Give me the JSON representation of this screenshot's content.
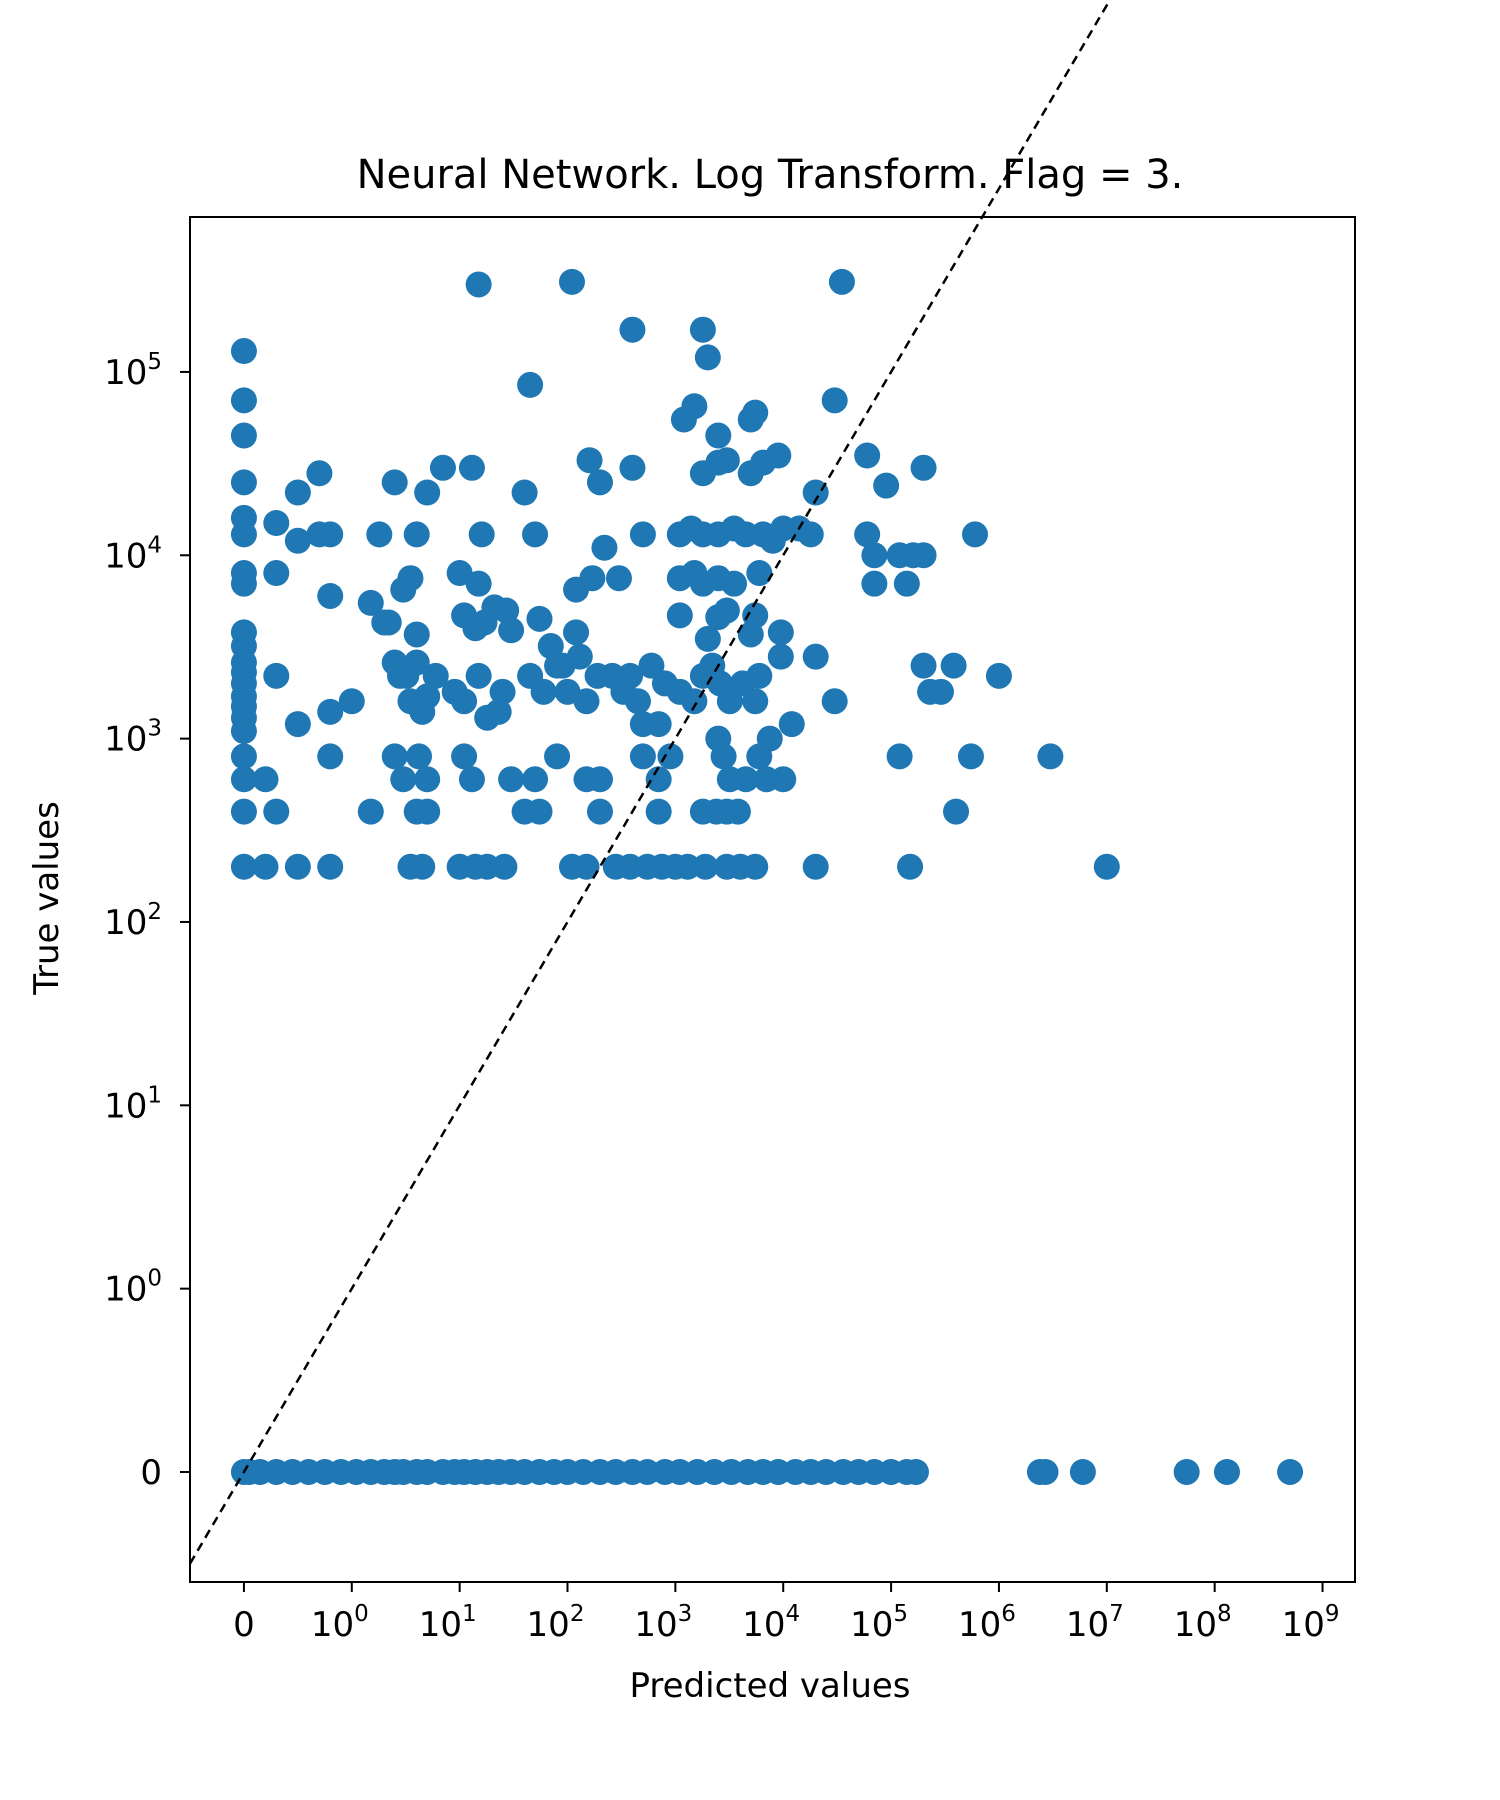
{
  "chart_data": {
    "type": "scatter",
    "title": "Neural Network. Log Transform. Flag = 3.",
    "xlabel": "Predicted values",
    "ylabel": "True values",
    "xscale": "symlog",
    "yscale": "symlog",
    "xlim": [
      -0.5,
      2000000000
    ],
    "ylim": [
      -0.6,
      700000
    ],
    "grid": false,
    "legend": "none",
    "marker_color": "#1f77b4",
    "reference_line": {
      "style": "dashed",
      "color": "#000000",
      "from": [
        -0.5,
        -0.5
      ],
      "to": [
        2000000000,
        2000000000
      ]
    },
    "xticks": [
      {
        "value": 0,
        "base": "0",
        "exp": ""
      },
      {
        "value": 1,
        "base": "10",
        "exp": "0"
      },
      {
        "value": 10,
        "base": "10",
        "exp": "1"
      },
      {
        "value": 100,
        "base": "10",
        "exp": "2"
      },
      {
        "value": 1000,
        "base": "10",
        "exp": "3"
      },
      {
        "value": 10000,
        "base": "10",
        "exp": "4"
      },
      {
        "value": 100000,
        "base": "10",
        "exp": "5"
      },
      {
        "value": 1000000,
        "base": "10",
        "exp": "6"
      },
      {
        "value": 10000000,
        "base": "10",
        "exp": "7"
      },
      {
        "value": 100000000,
        "base": "10",
        "exp": "8"
      },
      {
        "value": 1000000000,
        "base": "10",
        "exp": "9"
      }
    ],
    "yticks": [
      {
        "value": 0,
        "base": "0",
        "exp": ""
      },
      {
        "value": 1,
        "base": "10",
        "exp": "0"
      },
      {
        "value": 10,
        "base": "10",
        "exp": "1"
      },
      {
        "value": 100,
        "base": "10",
        "exp": "2"
      },
      {
        "value": 1000,
        "base": "10",
        "exp": "3"
      },
      {
        "value": 10000,
        "base": "10",
        "exp": "4"
      },
      {
        "value": 100000,
        "base": "10",
        "exp": "5"
      }
    ],
    "points": [
      [
        15,
        300000
      ],
      [
        110,
        310000
      ],
      [
        35000,
        310000
      ],
      [
        0,
        130000
      ],
      [
        400,
        170000
      ],
      [
        1800,
        170000
      ],
      [
        2000,
        120000
      ],
      [
        45,
        85000
      ],
      [
        0,
        70000
      ],
      [
        0,
        45000
      ],
      [
        1500,
        65000
      ],
      [
        1200,
        55000
      ],
      [
        2500,
        45000
      ],
      [
        5000,
        55000
      ],
      [
        5500,
        60000
      ],
      [
        30000,
        70000
      ],
      [
        0,
        25000
      ],
      [
        0.7,
        28000
      ],
      [
        0.5,
        22000
      ],
      [
        2.5,
        25000
      ],
      [
        7,
        30000
      ],
      [
        13,
        30000
      ],
      [
        5,
        22000
      ],
      [
        40,
        22000
      ],
      [
        160,
        33000
      ],
      [
        200,
        25000
      ],
      [
        400,
        30000
      ],
      [
        1800,
        28000
      ],
      [
        2500,
        32000
      ],
      [
        3000,
        33000
      ],
      [
        5000,
        28000
      ],
      [
        6500,
        32000
      ],
      [
        9000,
        35000
      ],
      [
        20000,
        22000
      ],
      [
        60000,
        35000
      ],
      [
        90000,
        24000
      ],
      [
        200000,
        30000
      ],
      [
        0,
        16000
      ],
      [
        0,
        13000
      ],
      [
        0.3,
        15000
      ],
      [
        0.5,
        12000
      ],
      [
        0.7,
        13000
      ],
      [
        0.8,
        13000
      ],
      [
        1.8,
        13000
      ],
      [
        4,
        13000
      ],
      [
        16,
        13000
      ],
      [
        50,
        13000
      ],
      [
        220,
        11000
      ],
      [
        500,
        13000
      ],
      [
        1100,
        13000
      ],
      [
        1400,
        14000
      ],
      [
        1800,
        13000
      ],
      [
        2500,
        13000
      ],
      [
        3500,
        14000
      ],
      [
        4500,
        13000
      ],
      [
        6500,
        13000
      ],
      [
        8000,
        12000
      ],
      [
        10000,
        14000
      ],
      [
        14000,
        14000
      ],
      [
        18000,
        13000
      ],
      [
        60000,
        13000
      ],
      [
        70000,
        10000
      ],
      [
        120000,
        10000
      ],
      [
        160000,
        10000
      ],
      [
        200000,
        10000
      ],
      [
        600000,
        13000
      ],
      [
        0,
        7000
      ],
      [
        0.3,
        8000
      ],
      [
        0,
        8000
      ],
      [
        0.8,
        6000
      ],
      [
        1.5,
        5500
      ],
      [
        3.5,
        7500
      ],
      [
        3,
        6500
      ],
      [
        10,
        8000
      ],
      [
        15,
        7000
      ],
      [
        120,
        6500
      ],
      [
        170,
        7500
      ],
      [
        300,
        7500
      ],
      [
        1100,
        7500
      ],
      [
        1500,
        8000
      ],
      [
        1800,
        7000
      ],
      [
        2500,
        7500
      ],
      [
        3500,
        7000
      ],
      [
        6000,
        8000
      ],
      [
        70000,
        7000
      ],
      [
        140000,
        7000
      ],
      [
        0,
        3800
      ],
      [
        0,
        3200
      ],
      [
        2,
        4300
      ],
      [
        2.2,
        4300
      ],
      [
        4,
        3700
      ],
      [
        11,
        4700
      ],
      [
        14,
        4000
      ],
      [
        17,
        4300
      ],
      [
        21,
        5200
      ],
      [
        27,
        5000
      ],
      [
        30,
        3900
      ],
      [
        55,
        4500
      ],
      [
        70,
        3200
      ],
      [
        120,
        3800
      ],
      [
        90,
        2500
      ],
      [
        1100,
        4700
      ],
      [
        2000,
        3500
      ],
      [
        2500,
        4600
      ],
      [
        3000,
        5000
      ],
      [
        5500,
        4700
      ],
      [
        5000,
        3700
      ],
      [
        9500,
        3800
      ],
      [
        0,
        2600
      ],
      [
        0,
        2300
      ],
      [
        0,
        2000
      ],
      [
        0,
        1700
      ],
      [
        0,
        1500
      ],
      [
        0,
        1300
      ],
      [
        0,
        1100
      ],
      [
        0,
        800
      ],
      [
        0.3,
        2200
      ],
      [
        0.5,
        1200
      ],
      [
        0.8,
        1400
      ],
      [
        1,
        1600
      ],
      [
        2.5,
        2600
      ],
      [
        2.8,
        2200
      ],
      [
        3.2,
        2200
      ],
      [
        3.5,
        1600
      ],
      [
        4,
        2600
      ],
      [
        4.5,
        1400
      ],
      [
        5,
        1700
      ],
      [
        6,
        2200
      ],
      [
        9,
        1800
      ],
      [
        11,
        1600
      ],
      [
        15,
        2200
      ],
      [
        18,
        1300
      ],
      [
        25,
        1800
      ],
      [
        45,
        2200
      ],
      [
        60,
        1800
      ],
      [
        80,
        2500
      ],
      [
        100,
        1800
      ],
      [
        130,
        2800
      ],
      [
        150,
        1600
      ],
      [
        190,
        2200
      ],
      [
        260,
        2200
      ],
      [
        330,
        1800
      ],
      [
        380,
        2200
      ],
      [
        450,
        1600
      ],
      [
        600,
        2500
      ],
      [
        800,
        2000
      ],
      [
        1100,
        1800
      ],
      [
        1500,
        1600
      ],
      [
        1800,
        2200
      ],
      [
        2200,
        2500
      ],
      [
        2600,
        2000
      ],
      [
        3200,
        1600
      ],
      [
        4200,
        2000
      ],
      [
        5500,
        1600
      ],
      [
        6000,
        2200
      ],
      [
        9500,
        2800
      ],
      [
        20000,
        2800
      ],
      [
        30000,
        1600
      ],
      [
        200000,
        2500
      ],
      [
        230000,
        1800
      ],
      [
        290000,
        1800
      ],
      [
        380000,
        2500
      ],
      [
        1000000,
        2200
      ],
      [
        0,
        600
      ],
      [
        0.2,
        600
      ],
      [
        0.8,
        800
      ],
      [
        2.5,
        800
      ],
      [
        3,
        600
      ],
      [
        4.2,
        800
      ],
      [
        5,
        600
      ],
      [
        11,
        800
      ],
      [
        13,
        600
      ],
      [
        23,
        1400
      ],
      [
        30,
        600
      ],
      [
        50,
        600
      ],
      [
        80,
        800
      ],
      [
        150,
        600
      ],
      [
        200,
        600
      ],
      [
        500,
        1200
      ],
      [
        700,
        1200
      ],
      [
        500,
        800
      ],
      [
        900,
        800
      ],
      [
        700,
        600
      ],
      [
        2500,
        1000
      ],
      [
        2800,
        800
      ],
      [
        3200,
        600
      ],
      [
        4500,
        600
      ],
      [
        6000,
        800
      ],
      [
        7500,
        1000
      ],
      [
        10000,
        600
      ],
      [
        12000,
        1200
      ],
      [
        7000,
        600
      ],
      [
        120000,
        800
      ],
      [
        550000,
        800
      ],
      [
        3000000,
        800
      ],
      [
        0,
        400
      ],
      [
        0.3,
        400
      ],
      [
        1.5,
        400
      ],
      [
        4,
        400
      ],
      [
        5,
        400
      ],
      [
        40,
        400
      ],
      [
        55,
        400
      ],
      [
        200,
        400
      ],
      [
        700,
        400
      ],
      [
        1800,
        400
      ],
      [
        2400,
        400
      ],
      [
        3000,
        400
      ],
      [
        3800,
        400
      ],
      [
        400000,
        400
      ],
      [
        0,
        200
      ],
      [
        0.2,
        200
      ],
      [
        0.5,
        200
      ],
      [
        0.8,
        200
      ],
      [
        3.5,
        200
      ],
      [
        4.5,
        200
      ],
      [
        10,
        200
      ],
      [
        14,
        200
      ],
      [
        18,
        200
      ],
      [
        26,
        200
      ],
      [
        110,
        200
      ],
      [
        150,
        200
      ],
      [
        280,
        200
      ],
      [
        380,
        200
      ],
      [
        550,
        200
      ],
      [
        750,
        200
      ],
      [
        1000,
        200
      ],
      [
        1300,
        200
      ],
      [
        1900,
        200
      ],
      [
        3000,
        200
      ],
      [
        4000,
        200
      ],
      [
        5500,
        200
      ],
      [
        20000,
        200
      ],
      [
        150000,
        200
      ],
      [
        10000000,
        200
      ],
      [
        0,
        0
      ],
      [
        0.05,
        0
      ],
      [
        0.15,
        0
      ],
      [
        0.3,
        0
      ],
      [
        0.45,
        0
      ],
      [
        0.6,
        0
      ],
      [
        0.75,
        0
      ],
      [
        0.9,
        0
      ],
      [
        1.1,
        0
      ],
      [
        1.5,
        0
      ],
      [
        2,
        0
      ],
      [
        2.5,
        0
      ],
      [
        3,
        0
      ],
      [
        4,
        0
      ],
      [
        5,
        0
      ],
      [
        7,
        0
      ],
      [
        9,
        0
      ],
      [
        11,
        0
      ],
      [
        14,
        0
      ],
      [
        18,
        0
      ],
      [
        23,
        0
      ],
      [
        30,
        0
      ],
      [
        40,
        0
      ],
      [
        55,
        0
      ],
      [
        75,
        0
      ],
      [
        100,
        0
      ],
      [
        140,
        0
      ],
      [
        200,
        0
      ],
      [
        280,
        0
      ],
      [
        400,
        0
      ],
      [
        550,
        0
      ],
      [
        800,
        0
      ],
      [
        1100,
        0
      ],
      [
        1600,
        0
      ],
      [
        2300,
        0
      ],
      [
        3300,
        0
      ],
      [
        4700,
        0
      ],
      [
        6500,
        0
      ],
      [
        9000,
        0
      ],
      [
        13000,
        0
      ],
      [
        18000,
        0
      ],
      [
        25000,
        0
      ],
      [
        36000,
        0
      ],
      [
        50000,
        0
      ],
      [
        70000,
        0
      ],
      [
        100000,
        0
      ],
      [
        140000,
        0
      ],
      [
        170000,
        0
      ],
      [
        2400000,
        0
      ],
      [
        2700000,
        0
      ],
      [
        6000000,
        0
      ],
      [
        55000000,
        0
      ],
      [
        130000000,
        0
      ],
      [
        500000000,
        0
      ]
    ]
  }
}
